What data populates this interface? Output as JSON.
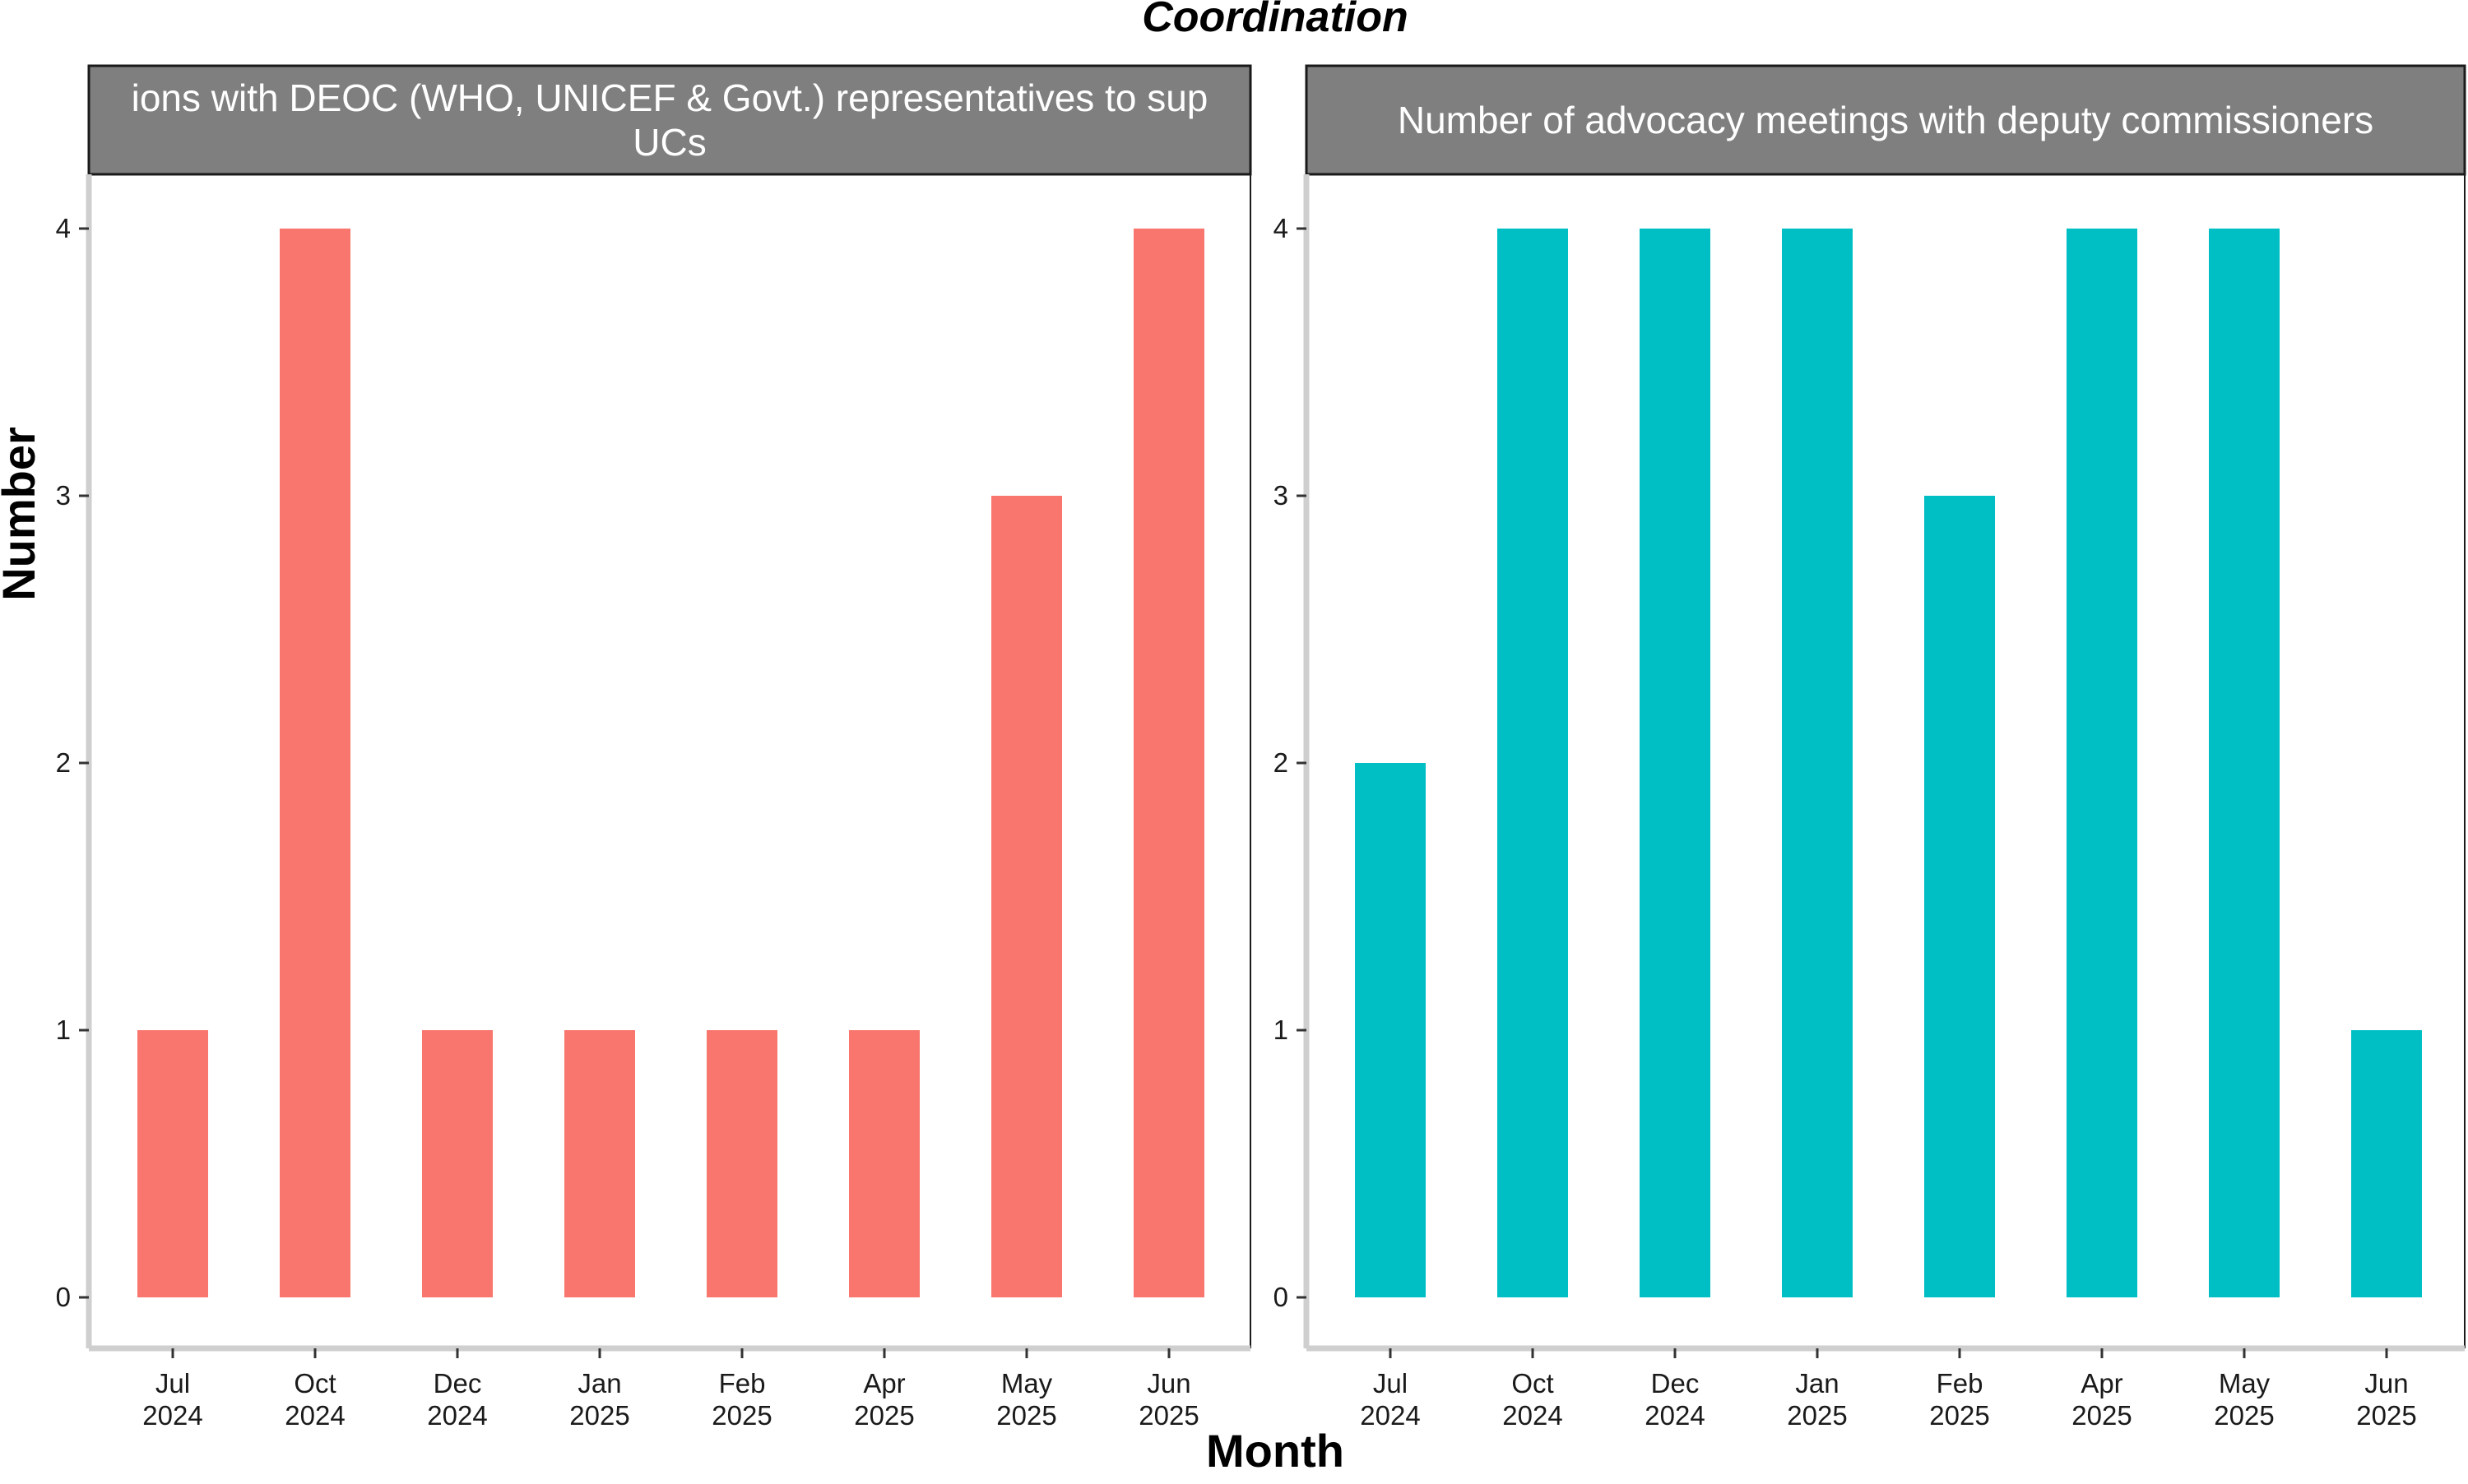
{
  "chart_data": {
    "title": "Coordination",
    "xlabel": "Month",
    "ylabel": "Number",
    "ylim": [
      0,
      4
    ],
    "y_ticks": [
      "0",
      "1",
      "2",
      "3",
      "4"
    ],
    "grid": false,
    "colors": {
      "panel1_bar": "#F8766D",
      "panel2_bar": "#00BFC4",
      "strip_fill": "#7F7F7F",
      "strip_text": "#FFFFFF"
    },
    "panels": [
      {
        "type": "bar",
        "strip_lines": [
          "ions with DEOC (WHO, UNICEF & Govt.) representatives to sup",
          "UCs"
        ],
        "categories": [
          [
            "Jul",
            "2024"
          ],
          [
            "Oct",
            "2024"
          ],
          [
            "Dec",
            "2024"
          ],
          [
            "Jan",
            "2025"
          ],
          [
            "Feb",
            "2025"
          ],
          [
            "Apr",
            "2025"
          ],
          [
            "May",
            "2025"
          ],
          [
            "Jun",
            "2025"
          ]
        ],
        "values": [
          1,
          4,
          1,
          1,
          1,
          1,
          3,
          4
        ]
      },
      {
        "type": "bar",
        "strip_lines": [
          "Number of advocacy meetings with deputy commissioners"
        ],
        "categories": [
          [
            "Jul",
            "2024"
          ],
          [
            "Oct",
            "2024"
          ],
          [
            "Dec",
            "2024"
          ],
          [
            "Jan",
            "2025"
          ],
          [
            "Feb",
            "2025"
          ],
          [
            "Apr",
            "2025"
          ],
          [
            "May",
            "2025"
          ],
          [
            "Jun",
            "2025"
          ]
        ],
        "values": [
          2,
          4,
          4,
          4,
          3,
          4,
          4,
          1
        ]
      }
    ]
  }
}
